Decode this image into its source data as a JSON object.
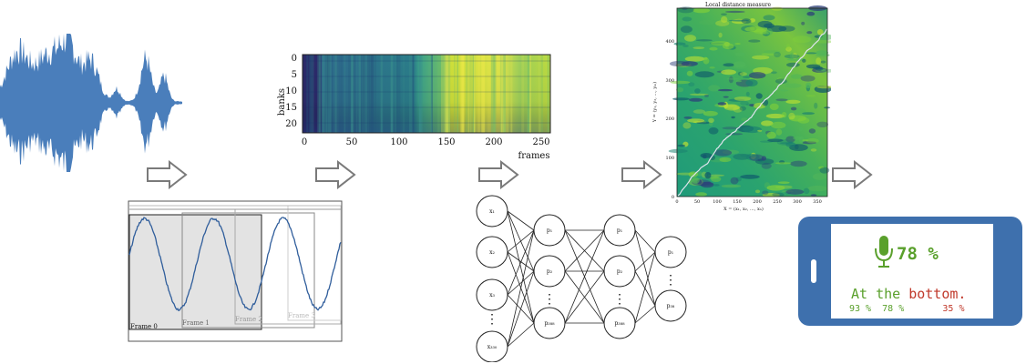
{
  "colors": {
    "waveform": "#4a7ebb",
    "arrow_stroke": "#7a7a7a",
    "frame_shade": "#e3e3e3",
    "sine": "#2f5d9b",
    "phone_body": "#3e70ad",
    "green": "#5aa02c",
    "red": "#c0392b"
  },
  "frames_panel": {
    "labels": [
      "Frame 0",
      "Frame 1",
      "Frame 2",
      "Frame 3"
    ]
  },
  "spectrogram": {
    "ylabel": "banks",
    "xlabel": "frames",
    "yticks": [
      "0",
      "5",
      "10",
      "15",
      "20"
    ],
    "xticks": [
      "0",
      "50",
      "100",
      "150",
      "200",
      "250"
    ]
  },
  "network": {
    "input_nodes": [
      "x₁",
      "x₂",
      "x₃",
      "x₃₃₀"
    ],
    "hidden1_nodes": [
      "p₁",
      "p₂",
      "p₃₈₈"
    ],
    "hidden2_nodes": [
      "p₁",
      "p₂",
      "p₃₈₈"
    ],
    "output_nodes": [
      "p₁",
      "p₃₈"
    ]
  },
  "dtw": {
    "title": "Local distance measure",
    "ylabel": "Y = (y₁, y₂, ..., yₘ)",
    "xlabel": "X = (x₁, x₂, ..., xₙ)",
    "yticks": [
      "0",
      "100",
      "200",
      "300",
      "400"
    ],
    "xticks": [
      "0",
      "50",
      "100",
      "150",
      "200",
      "250",
      "300",
      "350"
    ]
  },
  "phone": {
    "confidence": "78 %",
    "message_prefix": "At the ",
    "message_highlight": "bottom.",
    "stat_1": "93 %",
    "stat_2": "78 %",
    "stat_3": "35 %",
    "mic_icon": "microphone-icon"
  }
}
